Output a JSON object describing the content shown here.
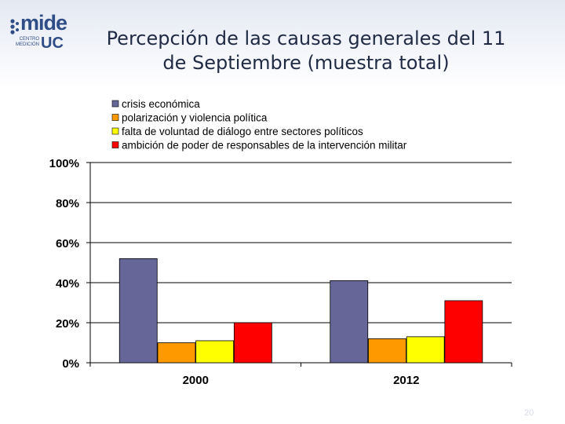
{
  "title": "Percepción de las causas generales del 11\nde Septiembre (muestra total)",
  "logo": {
    "word": "mide",
    "sub_line1": "CENTRO",
    "sub_line2": "MEDICIÓN",
    "uc": "UC"
  },
  "page_number": "20",
  "colors": {
    "crisis": "#666699",
    "polarizacion": "#ff9900",
    "dialogo": "#ffff00",
    "ambicion": "#ff0000"
  },
  "chart_data": {
    "type": "bar",
    "title": "Percepción de las causas generales del 11 de Septiembre (muestra total)",
    "categories": [
      "2000",
      "2012"
    ],
    "series": [
      {
        "name": "crisis económica",
        "values": [
          0.52,
          0.41
        ],
        "color": "#666699"
      },
      {
        "name": "polarización y violencia política",
        "values": [
          0.1,
          0.12
        ],
        "color": "#ff9900"
      },
      {
        "name": "falta de voluntad de diálogo entre sectores políticos",
        "values": [
          0.11,
          0.13
        ],
        "color": "#ffff00"
      },
      {
        "name": "ambición de poder de responsables de la intervención militar",
        "values": [
          0.2,
          0.31
        ],
        "color": "#ff0000"
      }
    ],
    "yticks": [
      "0%",
      "20%",
      "40%",
      "60%",
      "80%",
      "100%"
    ],
    "ylim": [
      0,
      1
    ],
    "grid": true,
    "legend": "top"
  }
}
